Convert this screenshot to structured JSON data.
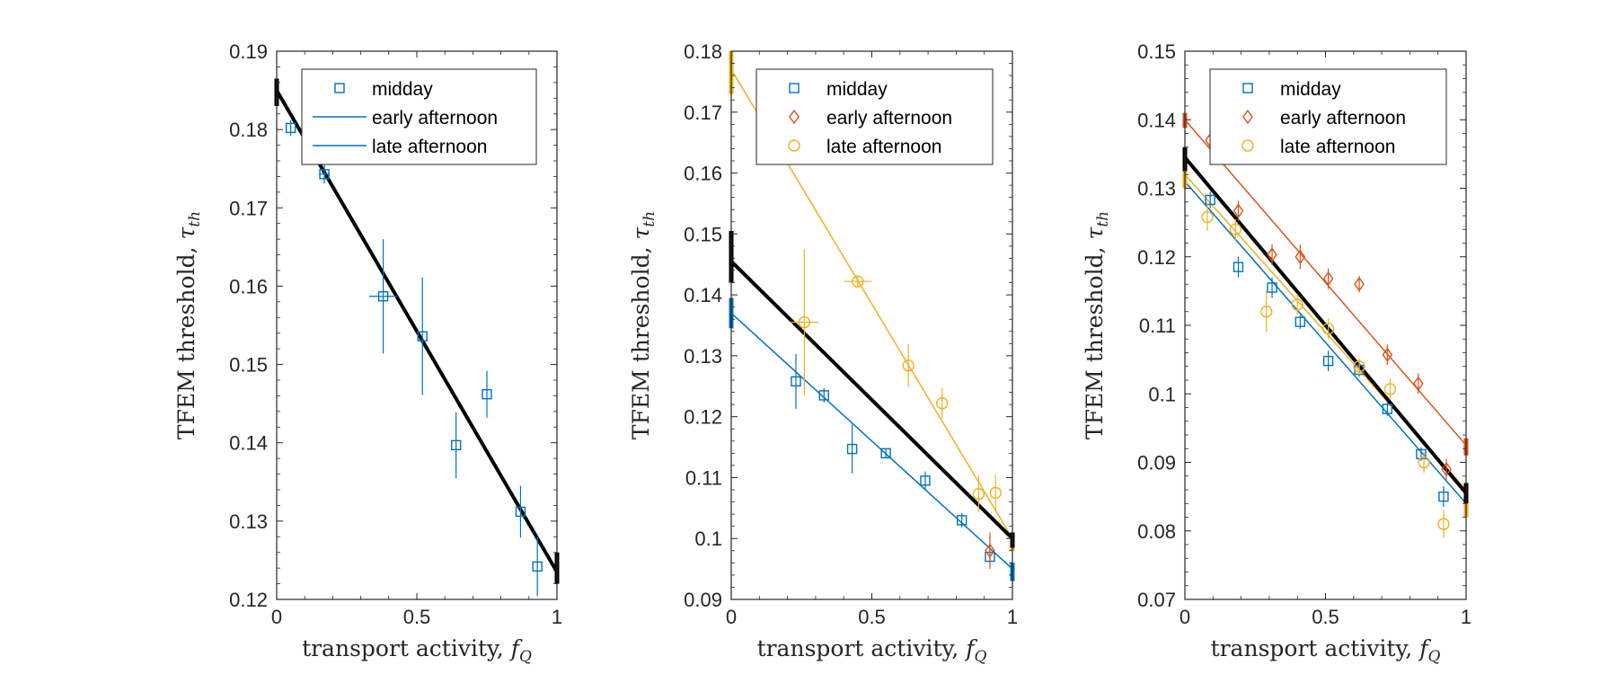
{
  "colors": {
    "midday": "#0072BD",
    "early_afternoon": "#D95319",
    "late_afternoon": "#EDB120",
    "fit_all": "#000000",
    "axis": "#262626"
  },
  "chart_data": [
    {
      "type": "scatter",
      "xlim": [
        0,
        1
      ],
      "ylim": [
        0.12,
        0.19
      ],
      "xticks": [
        0,
        0.5,
        1
      ],
      "xtick_labels": [
        "0",
        "0.5",
        "1"
      ],
      "yticks": [
        0.12,
        0.13,
        0.14,
        0.15,
        0.16,
        0.17,
        0.18,
        0.19
      ],
      "ytick_labels": [
        "0.12",
        "0.13",
        "0.14",
        "0.15",
        "0.16",
        "0.17",
        "0.18",
        "0.19"
      ],
      "xlabel": "transport activity, ",
      "xlabel_sym": "f",
      "xlabel_sub": "Q",
      "ylabel": "TFEM threshold, ",
      "ylabel_sym": "τ",
      "ylabel_sub": "th",
      "legend_position": "top-right",
      "legend": [
        {
          "label": "midday",
          "marker": "square",
          "line": false,
          "color_key": "midday"
        },
        {
          "label": "early afternoon",
          "marker": "none",
          "line": true,
          "color_key": "midday"
        },
        {
          "label": "late afternoon",
          "marker": "none",
          "line": true,
          "color_key": "midday"
        }
      ],
      "series": [
        {
          "name": "midday",
          "marker": "square",
          "color_key": "midday",
          "points": [
            {
              "x": 0.05,
              "y": 0.1802,
              "yerr": 0.001,
              "xerr": 0
            },
            {
              "x": 0.17,
              "y": 0.1743,
              "yerr": 0.0012,
              "xerr": 0.02
            },
            {
              "x": 0.38,
              "y": 0.1587,
              "yerr": 0.0073,
              "xerr": 0.05
            },
            {
              "x": 0.52,
              "y": 0.1536,
              "yerr": 0.0075,
              "xerr": 0
            },
            {
              "x": 0.64,
              "y": 0.1397,
              "yerr": 0.0042,
              "xerr": 0
            },
            {
              "x": 0.75,
              "y": 0.1462,
              "yerr": 0.003,
              "xerr": 0
            },
            {
              "x": 0.87,
              "y": 0.1312,
              "yerr": 0.0033,
              "xerr": 0
            },
            {
              "x": 0.93,
              "y": 0.1242,
              "yerr": 0.0038,
              "xerr": 0
            }
          ]
        }
      ],
      "fits": [
        {
          "color_key": "fit_all",
          "width": 4,
          "y0": 0.185,
          "y1": 0.1235
        }
      ],
      "end_bars": [
        {
          "x": 0,
          "y_low": 0.183,
          "y_high": 0.1865,
          "color_key": "fit_all"
        },
        {
          "x": 1,
          "y_low": 0.122,
          "y_high": 0.126,
          "color_key": "fit_all"
        }
      ]
    },
    {
      "type": "scatter",
      "xlim": [
        0,
        1
      ],
      "ylim": [
        0.09,
        0.18
      ],
      "xticks": [
        0,
        0.5,
        1
      ],
      "xtick_labels": [
        "0",
        "0.5",
        "1"
      ],
      "yticks": [
        0.09,
        0.1,
        0.11,
        0.12,
        0.13,
        0.14,
        0.15,
        0.16,
        0.17,
        0.18
      ],
      "ytick_labels": [
        "0.09",
        "0.1",
        "0.11",
        "0.12",
        "0.13",
        "0.14",
        "0.15",
        "0.16",
        "0.17",
        "0.18"
      ],
      "xlabel": "transport activity, ",
      "xlabel_sym": "f",
      "xlabel_sub": "Q",
      "ylabel": "TFEM threshold, ",
      "ylabel_sym": "τ",
      "ylabel_sub": "th",
      "legend_position": "top-right",
      "legend": [
        {
          "label": "midday",
          "marker": "square",
          "line": false,
          "color_key": "midday"
        },
        {
          "label": "early afternoon",
          "marker": "diamond",
          "line": false,
          "color_key": "early_afternoon"
        },
        {
          "label": "late afternoon",
          "marker": "circle",
          "line": false,
          "color_key": "late_afternoon"
        }
      ],
      "series": [
        {
          "name": "midday",
          "marker": "square",
          "color_key": "midday",
          "points": [
            {
              "x": 0.23,
              "y": 0.1258,
              "yerr": 0.0045,
              "xerr": 0
            },
            {
              "x": 0.33,
              "y": 0.1235,
              "yerr": 0.0012,
              "xerr": 0
            },
            {
              "x": 0.43,
              "y": 0.1147,
              "yerr": 0.004,
              "xerr": 0
            },
            {
              "x": 0.55,
              "y": 0.114,
              "yerr": 0.0008,
              "xerr": 0
            },
            {
              "x": 0.69,
              "y": 0.1095,
              "yerr": 0.0015,
              "xerr": 0
            },
            {
              "x": 0.82,
              "y": 0.103,
              "yerr": 0.0012,
              "xerr": 0
            },
            {
              "x": 0.92,
              "y": 0.097,
              "yerr": 0.0015,
              "xerr": 0
            }
          ]
        },
        {
          "name": "early afternoon",
          "marker": "diamond",
          "color_key": "early_afternoon",
          "points": [
            {
              "x": 0.92,
              "y": 0.098,
              "yerr": 0.003,
              "xerr": 0
            }
          ]
        },
        {
          "name": "late afternoon",
          "marker": "circle",
          "color_key": "late_afternoon",
          "points": [
            {
              "x": 0.26,
              "y": 0.1355,
              "yerr": 0.012,
              "xerr": 0.05
            },
            {
              "x": 0.45,
              "y": 0.1422,
              "yerr": 0.001,
              "xerr": 0.05
            },
            {
              "x": 0.63,
              "y": 0.1284,
              "yerr": 0.0035,
              "xerr": 0
            },
            {
              "x": 0.75,
              "y": 0.1222,
              "yerr": 0.0025,
              "xerr": 0
            },
            {
              "x": 0.88,
              "y": 0.1073,
              "yerr": 0.003,
              "xerr": 0
            },
            {
              "x": 0.94,
              "y": 0.1075,
              "yerr": 0.003,
              "xerr": 0
            }
          ]
        }
      ],
      "fits": [
        {
          "color_key": "midday",
          "width": 1.5,
          "y0": 0.137,
          "y1": 0.095
        },
        {
          "color_key": "late_afternoon",
          "width": 1.5,
          "y0": 0.177,
          "y1": 0.1
        },
        {
          "color_key": "fit_all",
          "width": 4,
          "y0": 0.1455,
          "y1": 0.1
        }
      ],
      "end_bars": [
        {
          "x": 0,
          "y_low": 0.1345,
          "y_high": 0.1395,
          "color_key": "midday"
        },
        {
          "x": 0,
          "y_low": 0.173,
          "y_high": 0.18,
          "color_key": "late_afternoon"
        },
        {
          "x": 0,
          "y_low": 0.142,
          "y_high": 0.1505,
          "color_key": "fit_all"
        },
        {
          "x": 1,
          "y_low": 0.093,
          "y_high": 0.096,
          "color_key": "midday"
        },
        {
          "x": 1,
          "y_low": 0.098,
          "y_high": 0.101,
          "color_key": "late_afternoon"
        },
        {
          "x": 1,
          "y_low": 0.0985,
          "y_high": 0.101,
          "color_key": "fit_all"
        }
      ]
    },
    {
      "type": "scatter",
      "xlim": [
        0,
        1
      ],
      "ylim": [
        0.07,
        0.15
      ],
      "xticks": [
        0,
        0.5,
        1
      ],
      "xtick_labels": [
        "0",
        "0.5",
        "1"
      ],
      "yticks": [
        0.07,
        0.08,
        0.09,
        0.1,
        0.11,
        0.12,
        0.13,
        0.14,
        0.15
      ],
      "ytick_labels": [
        "0.07",
        "0.08",
        "0.09",
        "0.1",
        "0.11",
        "0.12",
        "0.13",
        "0.14",
        "0.15"
      ],
      "xlabel": "transport activity, ",
      "xlabel_sym": "f",
      "xlabel_sub": "Q",
      "ylabel": "TFEM threshold, ",
      "ylabel_sym": "τ",
      "ylabel_sub": "th",
      "legend_position": "top-right",
      "legend": [
        {
          "label": "midday",
          "marker": "square",
          "line": false,
          "color_key": "midday"
        },
        {
          "label": "early afternoon",
          "marker": "diamond",
          "line": false,
          "color_key": "early_afternoon"
        },
        {
          "label": "late afternoon",
          "marker": "circle",
          "line": false,
          "color_key": "late_afternoon"
        }
      ],
      "series": [
        {
          "name": "midday",
          "marker": "square",
          "color_key": "midday",
          "points": [
            {
              "x": 0.09,
              "y": 0.1283,
              "yerr": 0.0012,
              "xerr": 0
            },
            {
              "x": 0.19,
              "y": 0.1185,
              "yerr": 0.0015,
              "xerr": 0
            },
            {
              "x": 0.31,
              "y": 0.1155,
              "yerr": 0.0015,
              "xerr": 0
            },
            {
              "x": 0.41,
              "y": 0.1105,
              "yerr": 0.001,
              "xerr": 0
            },
            {
              "x": 0.51,
              "y": 0.1048,
              "yerr": 0.0015,
              "xerr": 0
            },
            {
              "x": 0.62,
              "y": 0.1035,
              "yerr": 0.001,
              "xerr": 0
            },
            {
              "x": 0.72,
              "y": 0.0978,
              "yerr": 0.001,
              "xerr": 0
            },
            {
              "x": 0.84,
              "y": 0.0912,
              "yerr": 0.001,
              "xerr": 0
            },
            {
              "x": 0.92,
              "y": 0.085,
              "yerr": 0.0015,
              "xerr": 0
            }
          ]
        },
        {
          "name": "early afternoon",
          "marker": "diamond",
          "color_key": "early_afternoon",
          "points": [
            {
              "x": 0.09,
              "y": 0.137,
              "yerr": 0.0008,
              "xerr": 0
            },
            {
              "x": 0.19,
              "y": 0.1267,
              "yerr": 0.0015,
              "xerr": 0
            },
            {
              "x": 0.31,
              "y": 0.1203,
              "yerr": 0.0015,
              "xerr": 0
            },
            {
              "x": 0.41,
              "y": 0.12,
              "yerr": 0.0018,
              "xerr": 0
            },
            {
              "x": 0.51,
              "y": 0.1168,
              "yerr": 0.0015,
              "xerr": 0
            },
            {
              "x": 0.62,
              "y": 0.116,
              "yerr": 0.0012,
              "xerr": 0
            },
            {
              "x": 0.72,
              "y": 0.1057,
              "yerr": 0.0015,
              "xerr": 0
            },
            {
              "x": 0.83,
              "y": 0.1015,
              "yerr": 0.0015,
              "xerr": 0
            },
            {
              "x": 0.93,
              "y": 0.089,
              "yerr": 0.0015,
              "xerr": 0
            }
          ]
        },
        {
          "name": "late afternoon",
          "marker": "circle",
          "color_key": "late_afternoon",
          "points": [
            {
              "x": 0.08,
              "y": 0.1258,
              "yerr": 0.002,
              "xerr": 0
            },
            {
              "x": 0.18,
              "y": 0.124,
              "yerr": 0.0015,
              "xerr": 0
            },
            {
              "x": 0.29,
              "y": 0.112,
              "yerr": 0.003,
              "xerr": 0
            },
            {
              "x": 0.4,
              "y": 0.113,
              "yerr": 0.0015,
              "xerr": 0
            },
            {
              "x": 0.51,
              "y": 0.1095,
              "yerr": 0.0015,
              "xerr": 0
            },
            {
              "x": 0.62,
              "y": 0.104,
              "yerr": 0.0012,
              "xerr": 0
            },
            {
              "x": 0.73,
              "y": 0.1007,
              "yerr": 0.0015,
              "xerr": 0
            },
            {
              "x": 0.85,
              "y": 0.09,
              "yerr": 0.0015,
              "xerr": 0
            },
            {
              "x": 0.92,
              "y": 0.081,
              "yerr": 0.002,
              "xerr": 0
            }
          ]
        }
      ],
      "fits": [
        {
          "color_key": "midday",
          "width": 1.5,
          "y0": 0.131,
          "y1": 0.084
        },
        {
          "color_key": "early_afternoon",
          "width": 1.5,
          "y0": 0.14,
          "y1": 0.0925
        },
        {
          "color_key": "late_afternoon",
          "width": 1.5,
          "y0": 0.132,
          "y1": 0.086
        },
        {
          "color_key": "fit_all",
          "width": 4,
          "y0": 0.1345,
          "y1": 0.0855
        }
      ],
      "end_bars": [
        {
          "x": 0,
          "y_low": 0.1388,
          "y_high": 0.141,
          "color_key": "early_afternoon"
        },
        {
          "x": 0,
          "y_low": 0.13,
          "y_high": 0.134,
          "color_key": "late_afternoon"
        },
        {
          "x": 0,
          "y_low": 0.1325,
          "y_high": 0.136,
          "color_key": "fit_all"
        },
        {
          "x": 1,
          "y_low": 0.091,
          "y_high": 0.0935,
          "color_key": "early_afternoon"
        },
        {
          "x": 1,
          "y_low": 0.082,
          "y_high": 0.086,
          "color_key": "late_afternoon"
        },
        {
          "x": 1,
          "y_low": 0.084,
          "y_high": 0.087,
          "color_key": "fit_all"
        }
      ]
    }
  ]
}
